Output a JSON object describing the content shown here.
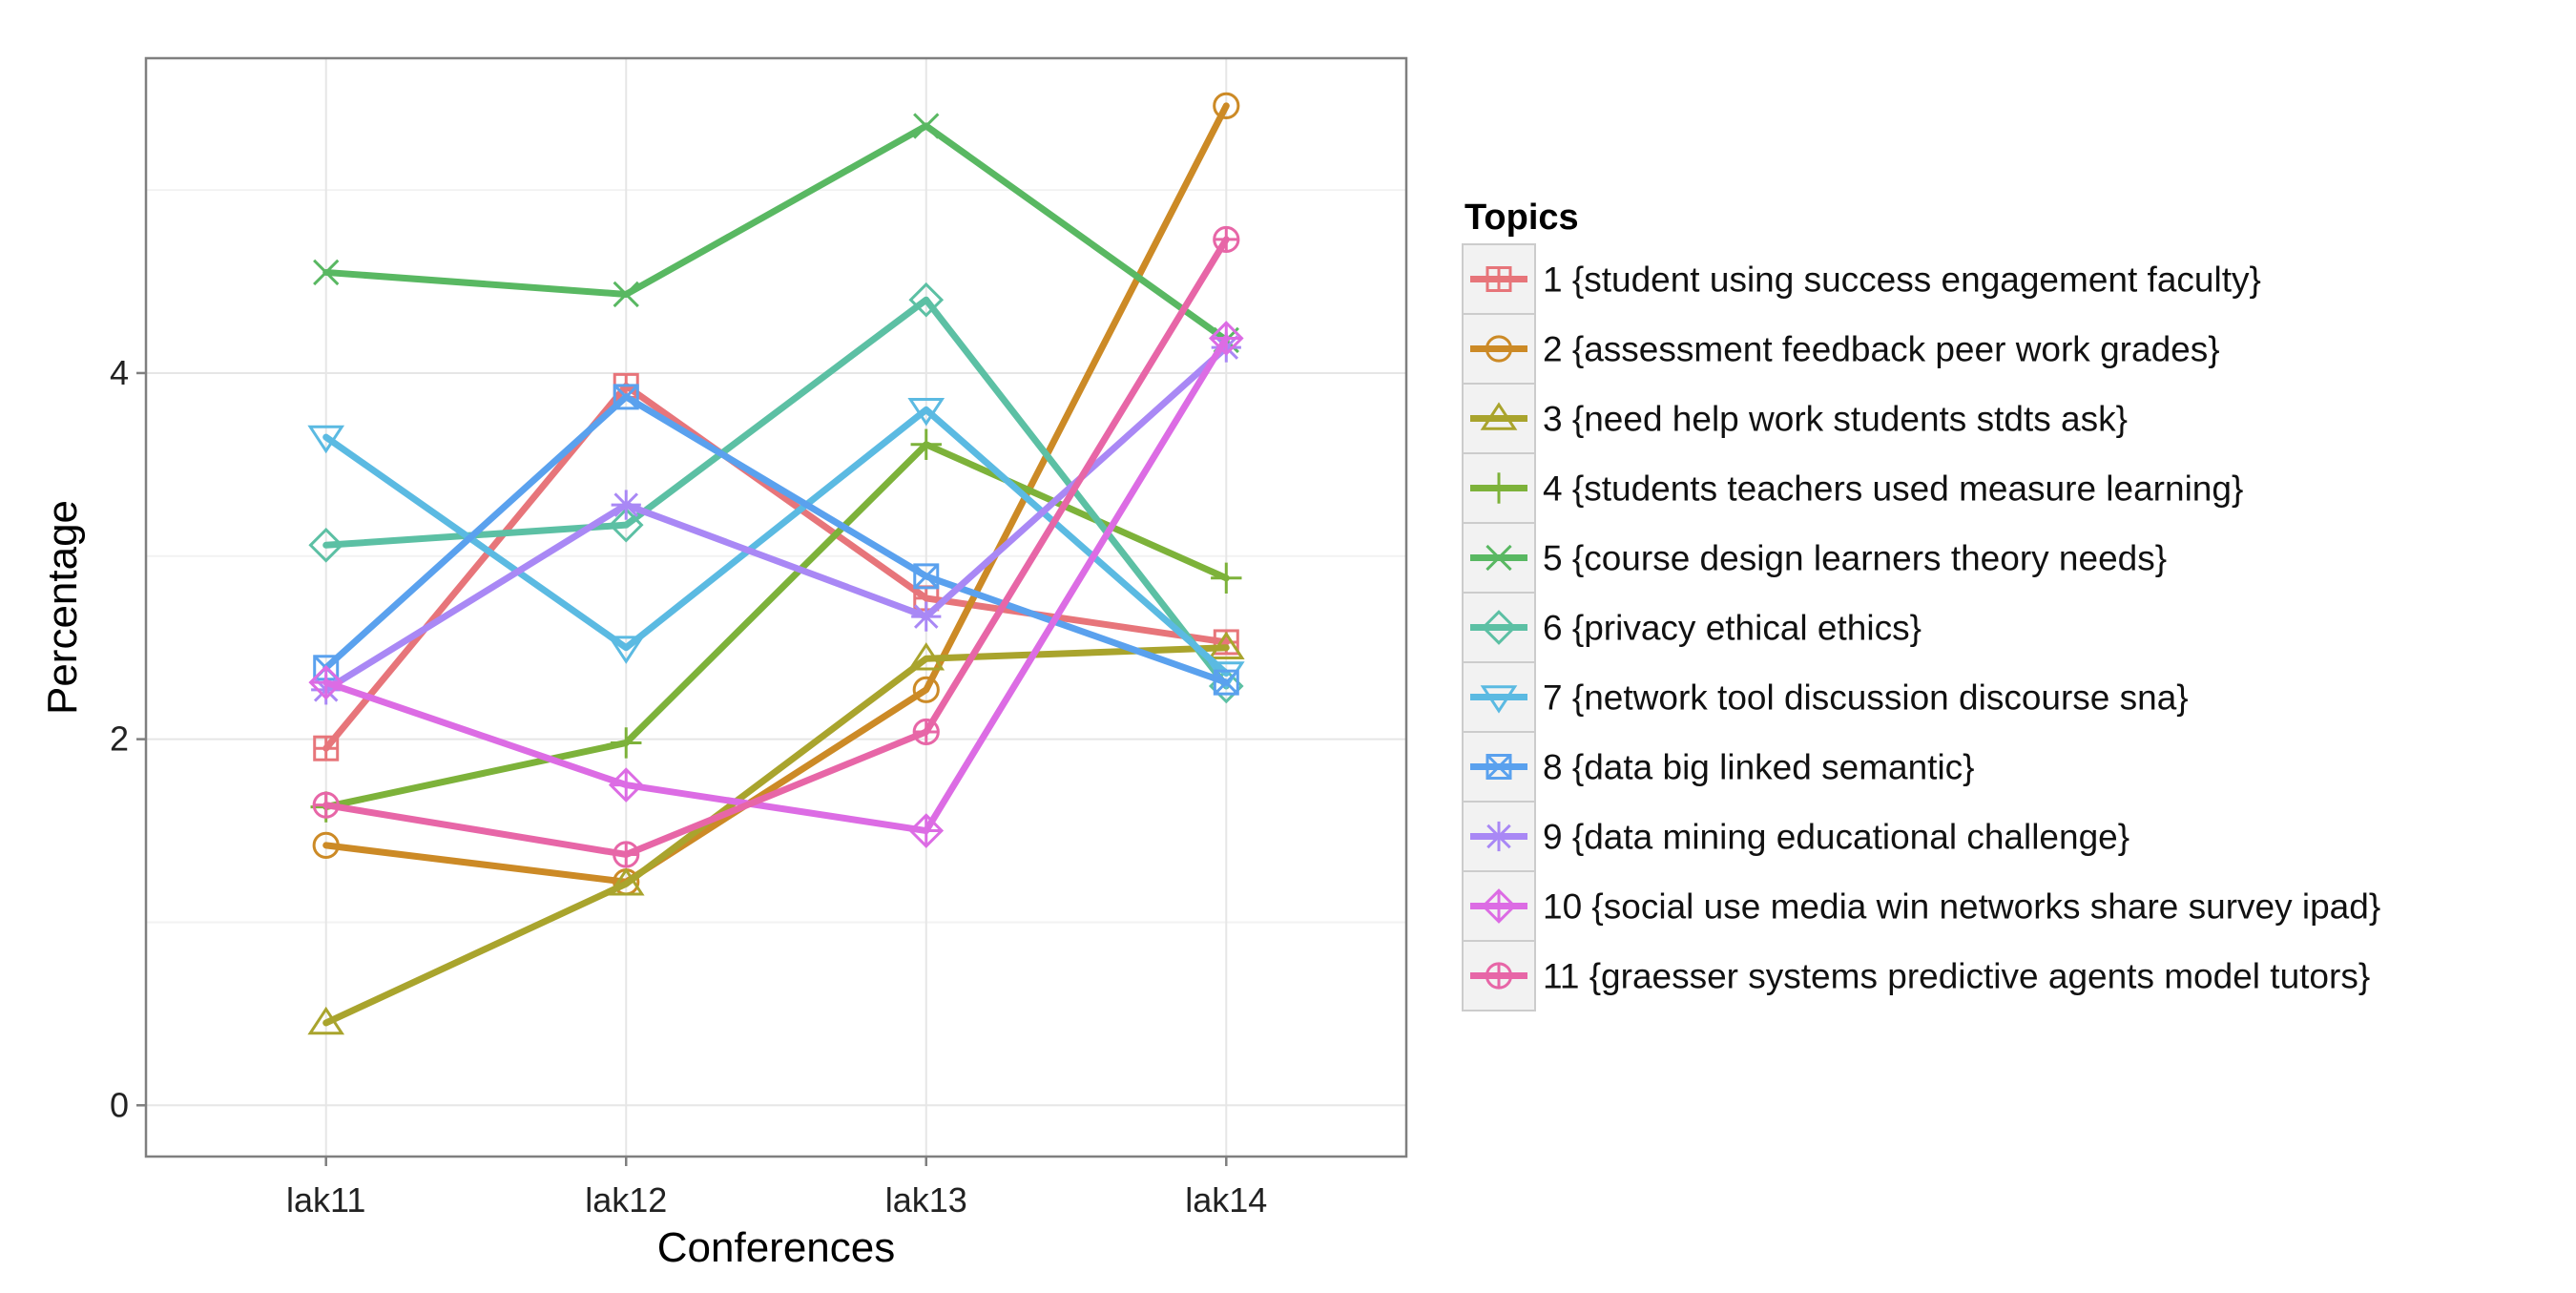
{
  "chart_data": {
    "type": "line",
    "title": "",
    "xlabel": "Conferences",
    "ylabel": "Percentage",
    "categories": [
      "lak11",
      "lak12",
      "lak13",
      "lak14"
    ],
    "ylim": [
      -0.28,
      5.72
    ],
    "yticks": [
      0,
      2,
      4
    ],
    "grid": true,
    "legend": {
      "title": "Topics",
      "placement": "right"
    },
    "series": [
      {
        "name": "1 {student using success engagement faculty}",
        "color": "#E7757A",
        "marker": "square-plus",
        "values": [
          1.95,
          3.93,
          2.77,
          2.53
        ]
      },
      {
        "name": "2 {assessment feedback peer work grades}",
        "color": "#CC8A26",
        "marker": "circle",
        "values": [
          1.42,
          1.22,
          2.27,
          5.46
        ]
      },
      {
        "name": "3 {need help work students stdts ask}",
        "color": "#A9A42D",
        "marker": "triangle-up",
        "values": [
          0.45,
          1.21,
          2.44,
          2.5
        ]
      },
      {
        "name": "4 {students teachers used measure learning}",
        "color": "#7DB23A",
        "marker": "plus",
        "values": [
          1.63,
          1.98,
          3.61,
          2.88
        ]
      },
      {
        "name": "5 {course design learners theory needs}",
        "color": "#59B862",
        "marker": "x",
        "values": [
          4.55,
          4.43,
          5.35,
          4.18
        ]
      },
      {
        "name": "6 {privacy ethical ethics}",
        "color": "#5CC0A4",
        "marker": "diamond",
        "values": [
          3.06,
          3.17,
          4.4,
          2.29
        ]
      },
      {
        "name": "7 {network tool discussion discourse sna}",
        "color": "#5BBAE2",
        "marker": "triangle-down",
        "values": [
          3.65,
          2.5,
          3.8,
          2.36
        ]
      },
      {
        "name": "8 {data big linked semantic}",
        "color": "#5AA1EE",
        "marker": "square-x",
        "values": [
          2.39,
          3.87,
          2.89,
          2.31
        ]
      },
      {
        "name": "9 {data mining educational challenge}",
        "color": "#A988F5",
        "marker": "asterisk",
        "values": [
          2.27,
          3.28,
          2.67,
          4.14
        ]
      },
      {
        "name": "10 {social use media win networks share survey ipad}",
        "color": "#DC6CE4",
        "marker": "diamond-plus",
        "values": [
          2.31,
          1.75,
          1.5,
          4.19
        ]
      },
      {
        "name": "11 {graesser systems predictive agents model tutors}",
        "color": "#E766A7",
        "marker": "circle-plus",
        "values": [
          1.64,
          1.37,
          2.04,
          4.73
        ]
      }
    ]
  }
}
